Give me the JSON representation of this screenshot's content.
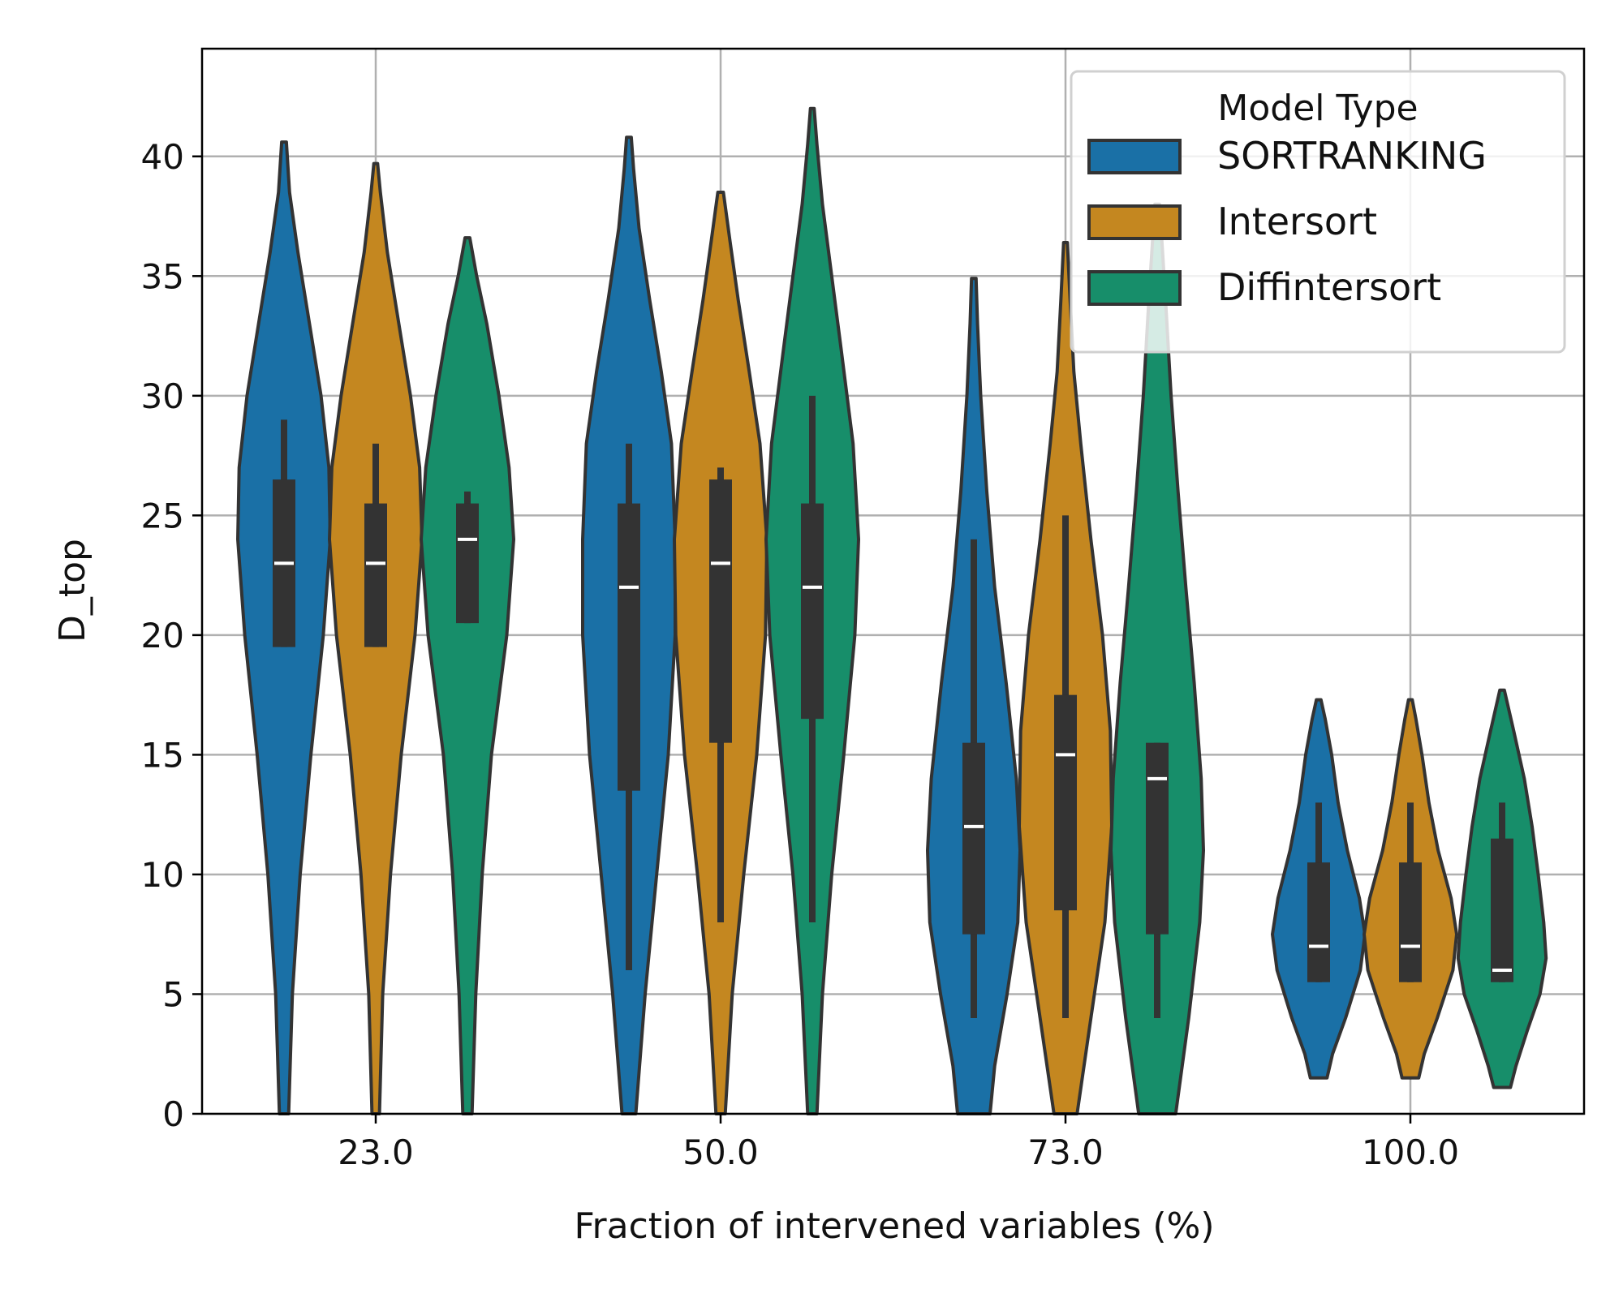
{
  "chart_data": {
    "type": "violin",
    "title": "",
    "xlabel": "Fraction of intervened variables (%)",
    "ylabel": "D_top",
    "ylim": [
      0,
      44.5
    ],
    "yticks": [
      "0",
      "5",
      "10",
      "15",
      "20",
      "25",
      "30",
      "35",
      "40"
    ],
    "categories": [
      "23.0",
      "50.0",
      "73.0",
      "100.0"
    ],
    "grid": true,
    "legend": {
      "title": "Model Type",
      "placement": "top-right"
    },
    "series": [
      {
        "name": "SORTRANKING",
        "color": "#1a70a6",
        "stats": [
          {
            "min": 0,
            "max": 40.6,
            "q1": 19.5,
            "median": 23,
            "q3": 26.5,
            "whisker_low": 19.5,
            "whisker_high": 29
          },
          {
            "min": 0,
            "max": 40.8,
            "q1": 13.5,
            "median": 22,
            "q3": 25.5,
            "whisker_low": 6,
            "whisker_high": 28
          },
          {
            "min": 0,
            "max": 34.9,
            "q1": 7.5,
            "median": 12,
            "q3": 15.5,
            "whisker_low": 4,
            "whisker_high": 24
          },
          {
            "min": 1.5,
            "max": 17.3,
            "q1": 5.5,
            "median": 7,
            "q3": 10.5,
            "whisker_low": 5.5,
            "whisker_high": 13
          }
        ],
        "density": [
          [
            [
              0,
              0.1
            ],
            [
              5,
              0.18
            ],
            [
              10,
              0.35
            ],
            [
              15,
              0.58
            ],
            [
              20,
              0.85
            ],
            [
              24,
              1.0
            ],
            [
              27,
              0.97
            ],
            [
              30,
              0.8
            ],
            [
              33,
              0.55
            ],
            [
              36,
              0.3
            ],
            [
              38.5,
              0.12
            ],
            [
              40.6,
              0.05
            ]
          ],
          [
            [
              0,
              0.15
            ],
            [
              5,
              0.35
            ],
            [
              10,
              0.6
            ],
            [
              15,
              0.85
            ],
            [
              20,
              1.0
            ],
            [
              24,
              1.0
            ],
            [
              28,
              0.92
            ],
            [
              31,
              0.7
            ],
            [
              34,
              0.45
            ],
            [
              37,
              0.22
            ],
            [
              39.5,
              0.1
            ],
            [
              40.8,
              0.05
            ]
          ],
          [
            [
              0,
              0.35
            ],
            [
              2,
              0.45
            ],
            [
              5,
              0.72
            ],
            [
              8,
              0.95
            ],
            [
              11,
              1.0
            ],
            [
              14,
              0.92
            ],
            [
              18,
              0.7
            ],
            [
              22,
              0.45
            ],
            [
              26,
              0.28
            ],
            [
              30,
              0.15
            ],
            [
              33,
              0.08
            ],
            [
              34.9,
              0.05
            ]
          ],
          [
            [
              1.5,
              0.18
            ],
            [
              2.5,
              0.3
            ],
            [
              4,
              0.58
            ],
            [
              6,
              0.9
            ],
            [
              7.5,
              1.0
            ],
            [
              9,
              0.88
            ],
            [
              11,
              0.62
            ],
            [
              13,
              0.42
            ],
            [
              15,
              0.28
            ],
            [
              16.5,
              0.14
            ],
            [
              17.3,
              0.05
            ]
          ]
        ]
      },
      {
        "name": "Intersort",
        "color": "#c48720",
        "stats": [
          {
            "min": 0,
            "max": 39.7,
            "q1": 19.5,
            "median": 23,
            "q3": 25.5,
            "whisker_low": 19.5,
            "whisker_high": 28
          },
          {
            "min": 0,
            "max": 38.5,
            "q1": 15.5,
            "median": 23,
            "q3": 26.5,
            "whisker_low": 8,
            "whisker_high": 27
          },
          {
            "min": 0,
            "max": 36.4,
            "q1": 8.5,
            "median": 15,
            "q3": 17.5,
            "whisker_low": 4,
            "whisker_high": 25
          },
          {
            "min": 1.5,
            "max": 17.3,
            "q1": 5.5,
            "median": 7,
            "q3": 10.5,
            "whisker_low": 5.5,
            "whisker_high": 13
          }
        ],
        "density": [
          [
            [
              0,
              0.08
            ],
            [
              5,
              0.15
            ],
            [
              10,
              0.32
            ],
            [
              15,
              0.55
            ],
            [
              20,
              0.85
            ],
            [
              24,
              1.0
            ],
            [
              27,
              0.95
            ],
            [
              30,
              0.75
            ],
            [
              33,
              0.5
            ],
            [
              36,
              0.25
            ],
            [
              38.5,
              0.1
            ],
            [
              39.7,
              0.04
            ]
          ],
          [
            [
              0,
              0.1
            ],
            [
              5,
              0.25
            ],
            [
              10,
              0.5
            ],
            [
              15,
              0.78
            ],
            [
              20,
              0.97
            ],
            [
              24,
              1.0
            ],
            [
              28,
              0.85
            ],
            [
              31,
              0.62
            ],
            [
              34,
              0.38
            ],
            [
              36.5,
              0.2
            ],
            [
              38.5,
              0.06
            ]
          ],
          [
            [
              0,
              0.25
            ],
            [
              4,
              0.55
            ],
            [
              8,
              0.85
            ],
            [
              12,
              1.0
            ],
            [
              16,
              0.97
            ],
            [
              20,
              0.8
            ],
            [
              24,
              0.55
            ],
            [
              28,
              0.33
            ],
            [
              31,
              0.18
            ],
            [
              34,
              0.1
            ],
            [
              36.4,
              0.04
            ]
          ],
          [
            [
              1.5,
              0.18
            ],
            [
              2.5,
              0.3
            ],
            [
              4,
              0.58
            ],
            [
              6,
              0.92
            ],
            [
              7.5,
              1.0
            ],
            [
              9,
              0.88
            ],
            [
              11,
              0.6
            ],
            [
              13,
              0.4
            ],
            [
              15,
              0.25
            ],
            [
              16.5,
              0.12
            ],
            [
              17.3,
              0.04
            ]
          ]
        ]
      },
      {
        "name": "Diffintersort",
        "color": "#178e6a",
        "stats": [
          {
            "min": 0,
            "max": 36.6,
            "q1": 20.5,
            "median": 24,
            "q3": 25.5,
            "whisker_low": 20.5,
            "whisker_high": 26
          },
          {
            "min": 0,
            "max": 42.0,
            "q1": 16.5,
            "median": 22,
            "q3": 25.5,
            "whisker_low": 8,
            "whisker_high": 30
          },
          {
            "min": 0,
            "max": 38.0,
            "q1": 7.5,
            "median": 14,
            "q3": 15.5,
            "whisker_low": 4,
            "whisker_high": 15.5
          },
          {
            "min": 1.1,
            "max": 17.7,
            "q1": 5.5,
            "median": 6,
            "q3": 11.5,
            "whisker_low": 5.5,
            "whisker_high": 13
          }
        ],
        "density": [
          [
            [
              0,
              0.1
            ],
            [
              5,
              0.18
            ],
            [
              10,
              0.32
            ],
            [
              15,
              0.52
            ],
            [
              20,
              0.85
            ],
            [
              24,
              1.0
            ],
            [
              27,
              0.9
            ],
            [
              30,
              0.68
            ],
            [
              33,
              0.42
            ],
            [
              35,
              0.2
            ],
            [
              36.6,
              0.05
            ]
          ],
          [
            [
              0,
              0.1
            ],
            [
              5,
              0.22
            ],
            [
              10,
              0.42
            ],
            [
              15,
              0.68
            ],
            [
              20,
              0.92
            ],
            [
              24,
              1.0
            ],
            [
              28,
              0.88
            ],
            [
              32,
              0.62
            ],
            [
              35,
              0.42
            ],
            [
              38,
              0.22
            ],
            [
              40.5,
              0.1
            ],
            [
              42,
              0.04
            ]
          ],
          [
            [
              0,
              0.4
            ],
            [
              4,
              0.68
            ],
            [
              8,
              0.92
            ],
            [
              11,
              1.0
            ],
            [
              14,
              0.95
            ],
            [
              18,
              0.8
            ],
            [
              22,
              0.62
            ],
            [
              26,
              0.45
            ],
            [
              30,
              0.3
            ],
            [
              34,
              0.18
            ],
            [
              36.5,
              0.1
            ],
            [
              38,
              0.05
            ]
          ],
          [
            [
              1.1,
              0.18
            ],
            [
              2,
              0.3
            ],
            [
              3.5,
              0.55
            ],
            [
              5,
              0.82
            ],
            [
              6.5,
              0.95
            ],
            [
              8,
              0.9
            ],
            [
              10,
              0.78
            ],
            [
              12,
              0.65
            ],
            [
              14,
              0.48
            ],
            [
              16,
              0.25
            ],
            [
              17.7,
              0.05
            ]
          ]
        ]
      }
    ]
  }
}
